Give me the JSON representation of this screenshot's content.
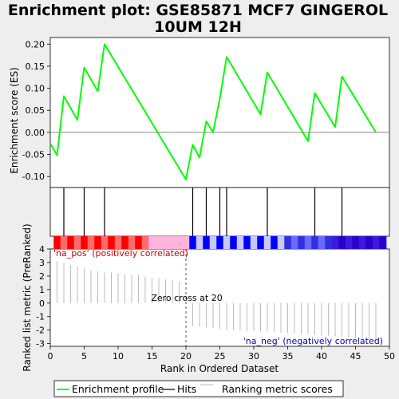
{
  "chart_data": {
    "type": "line",
    "title_line1": "Enrichment plot: GSE85871 MCF7 GINGEROL",
    "title_line2": "10UM 12H",
    "xlabel": "Rank in Ordered Dataset",
    "ylabel_es": "Enrichment score (ES)",
    "ylabel_metric": "Ranked list metric (PreRanked)",
    "legend": [
      "Enrichment profile",
      "Hits",
      "Ranking metric scores"
    ],
    "pos_label": "'na_pos' (positively correlated)",
    "neg_label": "'na_neg' (negatively correlated)",
    "zero_cross_label": "Zero cross at 20",
    "zero_cross": 20,
    "xlim": [
      0,
      50
    ],
    "es_ylim": [
      -0.125,
      0.215
    ],
    "metric_ylim": [
      -3.2,
      4
    ],
    "x_ticks": [
      0,
      5,
      10,
      15,
      20,
      25,
      30,
      35,
      40,
      45,
      50
    ],
    "es_y_ticks": [
      -0.1,
      -0.05,
      0.0,
      0.05,
      0.1,
      0.15,
      0.2
    ],
    "metric_y_ticks": [
      -3,
      -2,
      -1,
      0,
      1,
      2,
      3,
      4
    ],
    "hits": [
      2,
      5,
      8,
      21,
      23,
      25,
      26,
      32,
      39,
      43
    ],
    "es_profile": {
      "x": [
        0,
        1,
        2,
        4,
        5,
        7,
        8,
        20,
        21,
        22,
        23,
        24,
        25,
        26,
        31,
        32,
        38,
        39,
        42,
        43,
        48
      ],
      "y": [
        -0.025,
        -0.052,
        0.082,
        0.028,
        0.147,
        0.093,
        0.2,
        -0.107,
        -0.028,
        -0.057,
        0.025,
        0.0,
        0.077,
        0.171,
        0.041,
        0.136,
        -0.02,
        0.089,
        0.012,
        0.127,
        0.0
      ]
    },
    "ranking_metric": {
      "x": [
        1,
        2,
        3,
        4,
        5,
        6,
        7,
        8,
        9,
        10,
        11,
        12,
        13,
        14,
        15,
        16,
        17,
        18,
        19,
        21,
        22,
        23,
        24,
        25,
        26,
        27,
        28,
        29,
        30,
        31,
        32,
        33,
        34,
        35,
        36,
        37,
        38,
        39,
        40,
        41,
        42,
        43,
        44,
        45,
        46,
        47,
        48
      ],
      "values": [
        3.1,
        3.0,
        2.8,
        2.7,
        2.6,
        2.4,
        2.35,
        2.3,
        2.25,
        2.2,
        2.15,
        2.1,
        2.05,
        1.95,
        1.9,
        1.85,
        1.75,
        1.7,
        1.6,
        -1.7,
        -1.75,
        -1.8,
        -1.85,
        -1.9,
        -1.95,
        -2.0,
        -2.0,
        -2.05,
        -2.05,
        -2.1,
        -2.1,
        -2.15,
        -2.2,
        -2.2,
        -2.25,
        -2.3,
        -2.3,
        -2.35,
        -2.4,
        -2.4,
        -2.45,
        -2.5,
        -2.55,
        -2.6,
        -2.65,
        -2.7,
        -2.8
      ]
    },
    "colors": {
      "es_line": "#00ff00",
      "hit": "#000000",
      "metric": "#bbbbbb",
      "pos_bar": "#ff0000",
      "pos_light": "#ffb4dc",
      "neg_bar": "#0000ff",
      "neg_light": "#c8c8ff"
    }
  }
}
